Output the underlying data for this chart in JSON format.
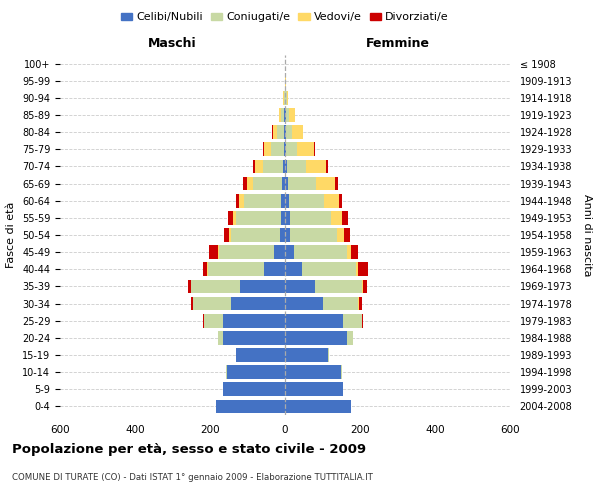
{
  "age_groups": [
    "0-4",
    "5-9",
    "10-14",
    "15-19",
    "20-24",
    "25-29",
    "30-34",
    "35-39",
    "40-44",
    "45-49",
    "50-54",
    "55-59",
    "60-64",
    "65-69",
    "70-74",
    "75-79",
    "80-84",
    "85-89",
    "90-94",
    "95-99",
    "100+"
  ],
  "birth_years": [
    "2004-2008",
    "1999-2003",
    "1994-1998",
    "1989-1993",
    "1984-1988",
    "1979-1983",
    "1974-1978",
    "1969-1973",
    "1964-1968",
    "1959-1963",
    "1954-1958",
    "1949-1953",
    "1944-1948",
    "1939-1943",
    "1934-1938",
    "1929-1933",
    "1924-1928",
    "1919-1923",
    "1914-1918",
    "1909-1913",
    "≤ 1908"
  ],
  "maschi": {
    "celibi": [
      185,
      165,
      155,
      130,
      165,
      165,
      145,
      120,
      55,
      30,
      14,
      12,
      10,
      8,
      5,
      3,
      3,
      2,
      1,
      0,
      0
    ],
    "coniugati": [
      0,
      0,
      2,
      2,
      15,
      50,
      100,
      130,
      150,
      145,
      130,
      120,
      100,
      78,
      55,
      35,
      18,
      8,
      2,
      0,
      0
    ],
    "vedovi": [
      0,
      0,
      0,
      0,
      0,
      1,
      1,
      1,
      2,
      3,
      5,
      8,
      12,
      15,
      20,
      18,
      12,
      5,
      2,
      1,
      0
    ],
    "divorziati": [
      0,
      0,
      0,
      0,
      0,
      2,
      5,
      8,
      12,
      25,
      14,
      12,
      10,
      10,
      5,
      2,
      1,
      0,
      0,
      0,
      0
    ]
  },
  "femmine": {
    "nubili": [
      175,
      155,
      150,
      115,
      165,
      155,
      100,
      80,
      45,
      25,
      14,
      12,
      10,
      8,
      5,
      3,
      3,
      3,
      1,
      0,
      0
    ],
    "coniugate": [
      0,
      0,
      2,
      2,
      15,
      50,
      95,
      125,
      145,
      140,
      125,
      110,
      95,
      75,
      50,
      30,
      15,
      8,
      3,
      0,
      0
    ],
    "vedove": [
      0,
      0,
      0,
      0,
      0,
      1,
      2,
      3,
      5,
      10,
      18,
      30,
      40,
      50,
      55,
      45,
      30,
      15,
      5,
      2,
      1
    ],
    "divorziate": [
      0,
      0,
      0,
      0,
      0,
      3,
      8,
      10,
      25,
      20,
      15,
      15,
      8,
      8,
      5,
      3,
      1,
      0,
      0,
      0,
      0
    ]
  },
  "colors": {
    "celibi": "#4472C4",
    "coniugati": "#C8D9A4",
    "vedovi": "#FFD966",
    "divorziati": "#CC0000"
  },
  "title": "Popolazione per età, sesso e stato civile - 2009",
  "subtitle": "COMUNE DI TURATE (CO) - Dati ISTAT 1° gennaio 2009 - Elaborazione TUTTITALIA.IT",
  "xlabel_left": "Maschi",
  "xlabel_right": "Femmine",
  "ylabel_left": "Fasce di età",
  "ylabel_right": "Anni di nascita",
  "xlim": 600,
  "legend_labels": [
    "Celibi/Nubili",
    "Coniugati/e",
    "Vedovi/e",
    "Divorziati/e"
  ],
  "background_color": "#ffffff"
}
